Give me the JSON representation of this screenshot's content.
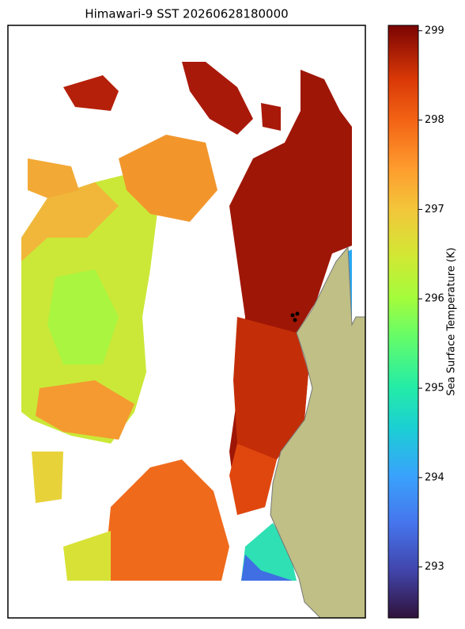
{
  "title": "Himawari-9 SST 20260628180000",
  "colorbar": {
    "label": "Sea Surface Temperature (K)",
    "lim": [
      292.43,
      299.06
    ],
    "ticks": [
      293,
      294,
      295,
      296,
      297,
      298,
      299
    ]
  }
}
